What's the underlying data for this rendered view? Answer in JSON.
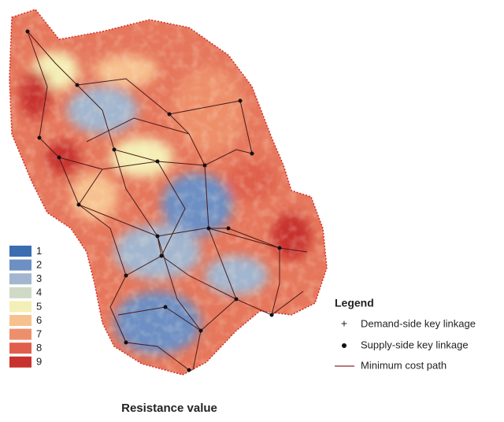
{
  "map": {
    "caption": "Resistance value",
    "resistance_classes": [
      {
        "value": 1,
        "color": "#3b6db0"
      },
      {
        "value": 2,
        "color": "#6d8fc4"
      },
      {
        "value": 3,
        "color": "#a3b6cf"
      },
      {
        "value": 4,
        "color": "#cfd9c4"
      },
      {
        "value": 5,
        "color": "#f4efb6"
      },
      {
        "value": 6,
        "color": "#f7c18f"
      },
      {
        "value": 7,
        "color": "#ee8f6b"
      },
      {
        "value": 8,
        "color": "#df5f4c"
      },
      {
        "value": 9,
        "color": "#c8322f"
      }
    ],
    "legend": {
      "title": "Legend",
      "items": [
        "Demand-side key linkage",
        "Supply-side key linkage",
        "Minimum cost path"
      ]
    }
  }
}
